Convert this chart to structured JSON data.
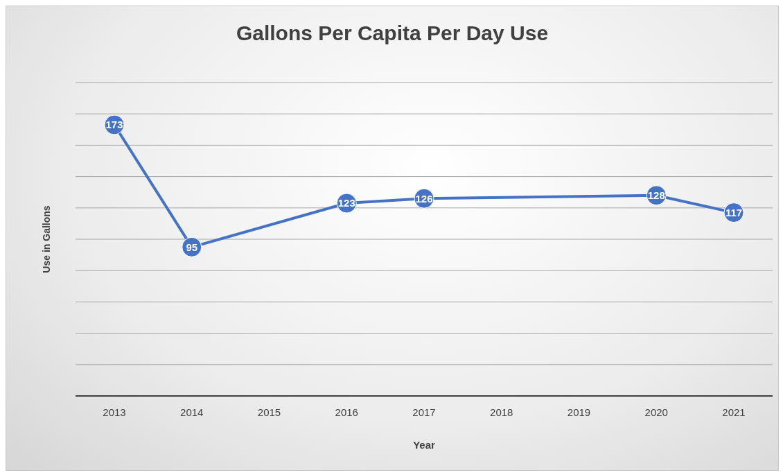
{
  "chart_data": {
    "type": "line",
    "title": "Gallons Per Capita Per Day Use",
    "xlabel": "Year",
    "ylabel": "Use in Gallons",
    "categories": [
      "2013",
      "2014",
      "2015",
      "2016",
      "2017",
      "2018",
      "2019",
      "2020",
      "2021"
    ],
    "values": [
      173,
      95,
      null,
      123,
      126,
      null,
      null,
      128,
      117
    ],
    "color": "#4472c4",
    "ylim": [
      0,
      200
    ],
    "yticks": [
      {
        "value": 0,
        "label": null
      },
      {
        "value": 20,
        "label": null
      },
      {
        "value": 40,
        "label": null
      },
      {
        "value": 60,
        "label": null
      },
      {
        "value": 80,
        "label": null
      },
      {
        "value": 100,
        "label": null
      },
      {
        "value": 120,
        "label": null
      },
      {
        "value": 140,
        "label": null
      },
      {
        "value": 160,
        "label": null
      },
      {
        "value": 180,
        "label": null
      },
      {
        "value": 200,
        "label": null
      }
    ],
    "tick_labels": "x",
    "grid": "y",
    "marker": "circle",
    "line_style": "solid",
    "data_labels": true
  }
}
